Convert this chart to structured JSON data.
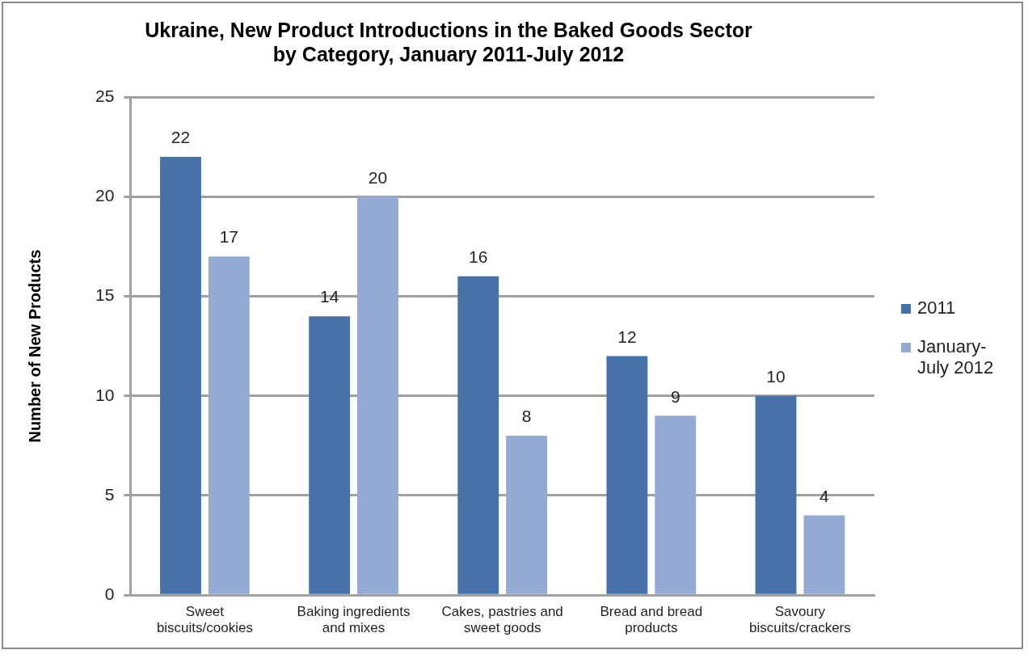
{
  "chart_data": {
    "type": "bar",
    "title": "Ukraine, New Product Introductions in the Baked Goods Sector by Category, January 2011-July 2012",
    "ylabel": "Number of New Products",
    "categories": [
      "Sweet biscuits/cookies",
      "Baking ingredients and mixes",
      "Cakes, pastries and sweet goods",
      "Bread and bread products",
      "Savoury biscuits/crackers"
    ],
    "series": [
      {
        "name": "2011",
        "color": "#4672a8",
        "values": [
          22,
          14,
          16,
          12,
          10
        ]
      },
      {
        "name": "January-July 2012",
        "color": "#95aad2",
        "values": [
          17,
          20,
          8,
          9,
          4
        ]
      }
    ],
    "ylim": [
      0,
      25
    ],
    "yticks": [
      0,
      5,
      10,
      15,
      20,
      25
    ],
    "grid": "y",
    "legend": "right",
    "data_labels": true
  }
}
